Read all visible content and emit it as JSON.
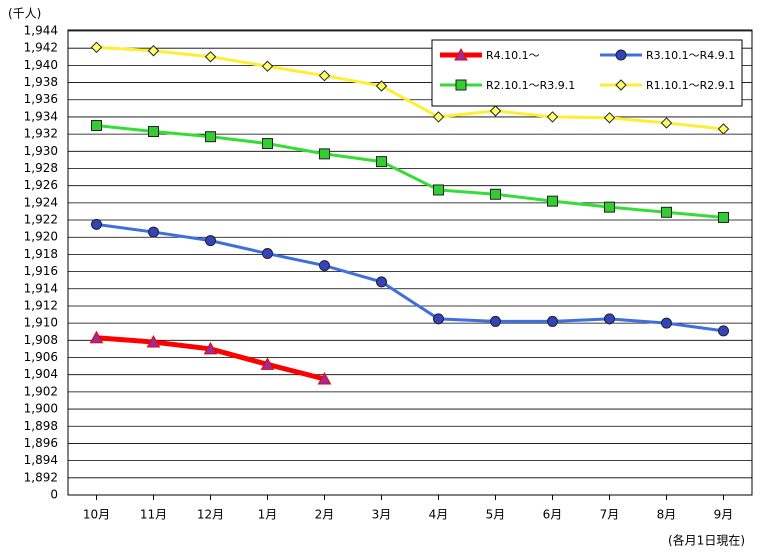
{
  "chart_data": {
    "type": "line",
    "unit_label": "(千人)",
    "note": "(各月1日現在)",
    "categories": [
      "10月",
      "11月",
      "12月",
      "1月",
      "2月",
      "3月",
      "4月",
      "5月",
      "6月",
      "7月",
      "8月",
      "9月"
    ],
    "series": [
      {
        "name": "R4.10.1～",
        "color": "#ff0000",
        "marker": "triangle",
        "marker_color": "#9b2d9b",
        "values": [
          1908.3,
          1907.8,
          1907.0,
          1905.2,
          1903.5,
          null,
          null,
          null,
          null,
          null,
          null,
          null
        ]
      },
      {
        "name": "R3.10.1～R4.9.1",
        "color": "#3f6fdf",
        "marker": "circle",
        "marker_color": "#3344bb",
        "values": [
          1921.5,
          1920.6,
          1919.6,
          1918.1,
          1916.7,
          1914.8,
          1910.5,
          1910.2,
          1910.2,
          1910.5,
          1910.0,
          1909.1
        ]
      },
      {
        "name": "R2.10.1～R3.9.1",
        "color": "#33dd33",
        "marker": "square",
        "marker_color": "#33cc33",
        "values": [
          1933.0,
          1932.3,
          1931.7,
          1930.9,
          1929.7,
          1928.8,
          1925.5,
          1925.0,
          1924.2,
          1923.5,
          1922.9,
          1922.3
        ]
      },
      {
        "name": "R1.10.1～R2.9.1",
        "color": "#ffee33",
        "marker": "diamond",
        "marker_color": "#ffff66",
        "values": [
          1942.1,
          1941.7,
          1941.0,
          1939.9,
          1938.8,
          1937.6,
          1934.0,
          1934.7,
          1934.0,
          1933.9,
          1933.3,
          1932.6
        ]
      }
    ],
    "ylim": [
      0,
      1944
    ],
    "axis_break": [
      0,
      1890
    ],
    "yticks": [
      0,
      {
        "value": 1892,
        "label": "1,892"
      },
      {
        "value": 1894,
        "label": "1,894"
      },
      {
        "value": 1896,
        "label": "1,896"
      },
      {
        "value": 1898,
        "label": "1,898"
      },
      {
        "value": 1900,
        "label": "1,900"
      },
      {
        "value": 1902,
        "label": "1,902"
      },
      {
        "value": 1904,
        "label": "1,904"
      },
      {
        "value": 1906,
        "label": "1,906"
      },
      {
        "value": 1908,
        "label": "1,908"
      },
      {
        "value": 1910,
        "label": "1,910"
      },
      {
        "value": 1912,
        "label": "1,912"
      },
      {
        "value": 1914,
        "label": "1,914"
      },
      {
        "value": 1916,
        "label": "1,916"
      },
      {
        "value": 1918,
        "label": "1,918"
      },
      {
        "value": 1920,
        "label": "1,920"
      },
      {
        "value": 1922,
        "label": "1,922"
      },
      {
        "value": 1924,
        "label": "1,924"
      },
      {
        "value": 1926,
        "label": "1,926"
      },
      {
        "value": 1928,
        "label": "1,928"
      },
      {
        "value": 1930,
        "label": "1,930"
      },
      {
        "value": 1932,
        "label": "1,932"
      },
      {
        "value": 1934,
        "label": "1,934"
      },
      {
        "value": 1936,
        "label": "1,936"
      },
      {
        "value": 1938,
        "label": "1,938"
      },
      {
        "value": 1940,
        "label": "1,940"
      },
      {
        "value": 1942,
        "label": "1,942"
      },
      {
        "value": 1944,
        "label": "1,944"
      }
    ],
    "grid": true
  }
}
